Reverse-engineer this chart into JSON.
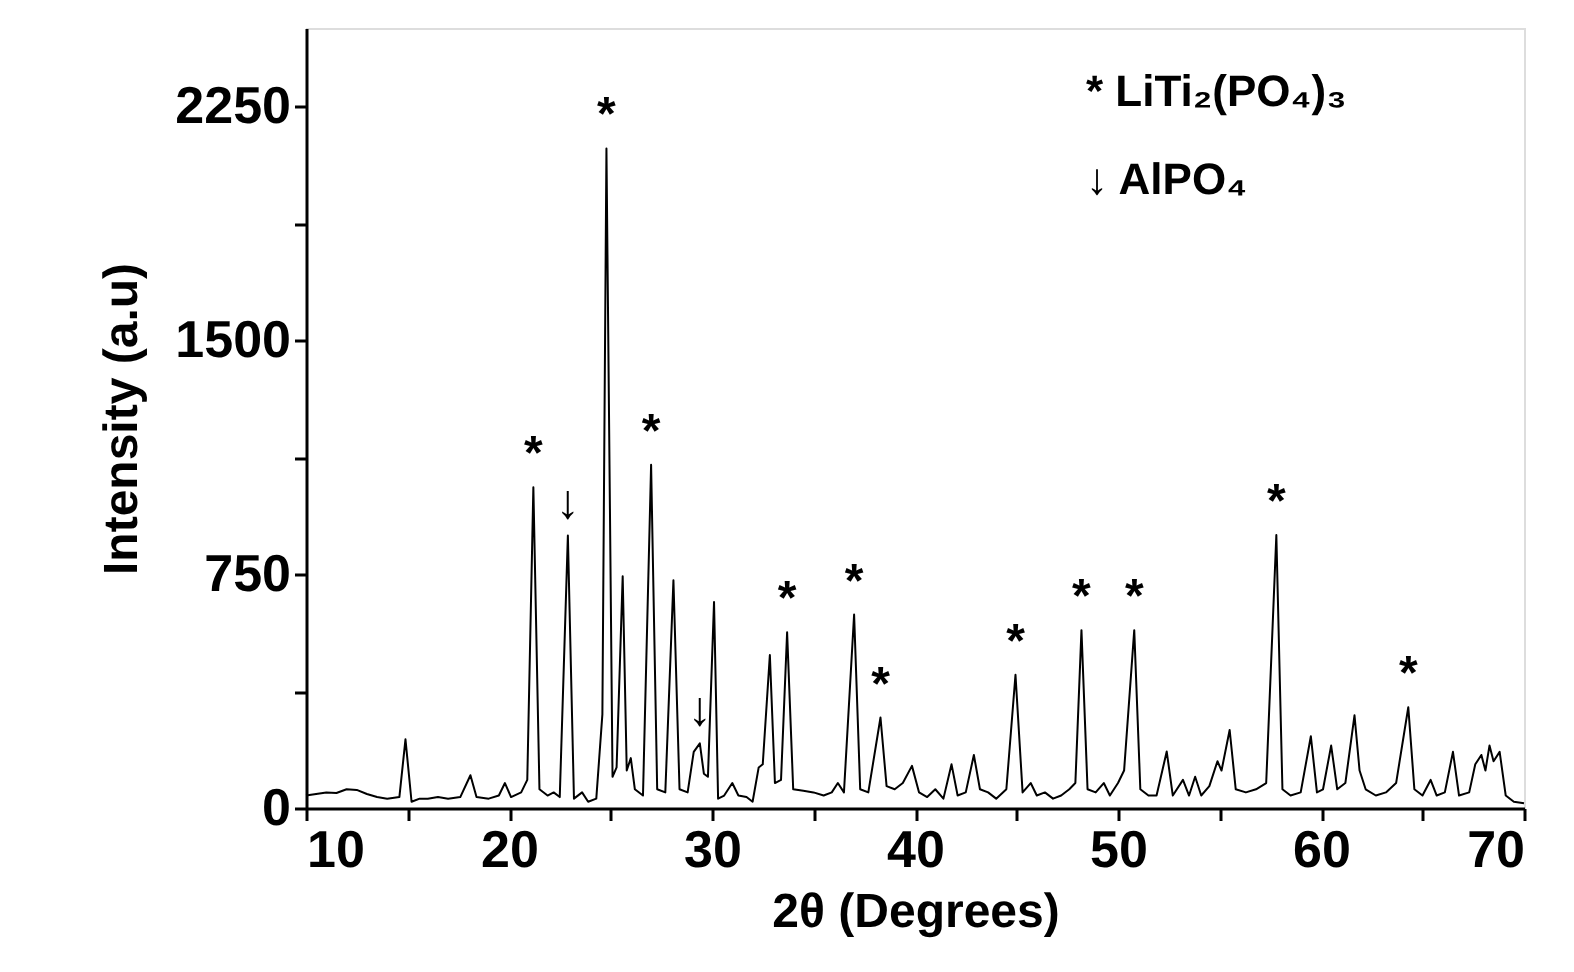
{
  "chart_data": {
    "type": "line",
    "xlabel": "2θ (Degrees)",
    "ylabel": "Intensity (a.u)",
    "xlim": [
      10,
      70
    ],
    "ylim": [
      0,
      2500
    ],
    "xticks": [
      10,
      {
        "value": 15,
        "label": null
      },
      20,
      {
        "value": 25,
        "label": null
      },
      30,
      {
        "value": 35,
        "label": null
      },
      40,
      {
        "value": 45,
        "label": null
      },
      50,
      {
        "value": 55,
        "label": null
      },
      60,
      {
        "value": 65,
        "label": null
      },
      70
    ],
    "yticks": [
      0,
      {
        "value": 375,
        "label": null
      },
      750,
      {
        "value": 1125,
        "label": null
      },
      1500,
      {
        "value": 1875,
        "label": null
      },
      2250
    ],
    "series": [
      {
        "color": "#000000",
        "x": [
          10,
          10.5,
          11,
          11.5,
          12,
          12.5,
          13,
          13.5,
          14,
          14.6,
          14.9,
          15.2,
          15.6,
          16,
          16.5,
          17,
          17.6,
          18.1,
          18.4,
          19,
          19.5,
          19.8,
          20.1,
          20.6,
          20.9,
          21.2,
          21.5,
          21.9,
          22.2,
          22.5,
          22.9,
          23.2,
          23.6,
          23.9,
          24.3,
          24.6,
          24.8,
          25.1,
          25.3,
          25.6,
          25.8,
          26.0,
          26.2,
          26.6,
          27.0,
          27.3,
          27.7,
          28.1,
          28.4,
          28.8,
          29.1,
          29.4,
          29.6,
          29.8,
          30.1,
          30.3,
          30.6,
          31.0,
          31.3,
          31.7,
          32.0,
          32.3,
          32.5,
          32.85,
          33.1,
          33.4,
          33.7,
          34.0,
          34.5,
          35.0,
          35.5,
          35.9,
          36.2,
          36.5,
          37.0,
          37.3,
          37.7,
          38.3,
          38.6,
          39.0,
          39.4,
          39.85,
          40.2,
          40.6,
          41.0,
          41.4,
          41.8,
          42.1,
          42.5,
          42.9,
          43.2,
          43.6,
          44.0,
          44.5,
          44.95,
          45.3,
          45.7,
          46.0,
          46.4,
          46.8,
          47.2,
          47.6,
          47.9,
          48.2,
          48.5,
          48.9,
          49.3,
          49.6,
          50.0,
          50.3,
          50.8,
          51.1,
          51.5,
          51.9,
          52.4,
          52.7,
          53.2,
          53.5,
          53.8,
          54.1,
          54.5,
          54.9,
          55.1,
          55.5,
          55.8,
          56.3,
          56.8,
          57.3,
          57.8,
          58.1,
          58.5,
          59.0,
          59.5,
          59.8,
          60.1,
          60.5,
          60.8,
          61.2,
          61.65,
          61.9,
          62.2,
          62.7,
          63.2,
          63.7,
          64.3,
          64.6,
          65.0,
          65.4,
          65.7,
          66.1,
          66.5,
          66.8,
          67.3,
          67.6,
          67.9,
          68.1,
          68.3,
          68.5,
          68.8,
          69.1,
          69.5,
          70
        ],
        "values": [
          40,
          45,
          50,
          48,
          60,
          58,
          45,
          35,
          30,
          35,
          220,
          20,
          30,
          30,
          35,
          30,
          35,
          105,
          35,
          30,
          40,
          80,
          35,
          50,
          90,
          1028,
          60,
          40,
          50,
          35,
          873,
          30,
          50,
          20,
          30,
          300,
          2114,
          100,
          130,
          743,
          120,
          160,
          60,
          40,
          1100,
          60,
          50,
          730,
          60,
          50,
          180,
          207,
          110,
          100,
          660,
          30,
          40,
          80,
          40,
          35,
          20,
          130,
          140,
          490,
          80,
          90,
          563,
          60,
          55,
          50,
          40,
          50,
          80,
          50,
          620,
          60,
          50,
          290,
          70,
          60,
          80,
          135,
          50,
          35,
          60,
          30,
          140,
          40,
          50,
          170,
          60,
          50,
          30,
          60,
          427,
          50,
          80,
          40,
          50,
          30,
          40,
          60,
          80,
          570,
          60,
          50,
          80,
          40,
          80,
          120,
          570,
          60,
          40,
          40,
          181,
          40,
          90,
          40,
          100,
          40,
          70,
          150,
          120,
          250,
          60,
          50,
          60,
          80,
          875,
          60,
          40,
          50,
          230,
          50,
          60,
          200,
          60,
          80,
          297,
          120,
          60,
          40,
          50,
          80,
          323,
          60,
          40,
          90,
          40,
          50,
          180,
          40,
          50,
          140,
          170,
          120,
          200,
          150,
          180,
          40,
          20,
          15
        ]
      }
    ],
    "annotations": [
      {
        "text": "*",
        "x": 21.2,
        "y": 1028
      },
      {
        "text": "*",
        "x": 24.8,
        "y": 2114
      },
      {
        "text": "*",
        "x": 27.0,
        "y": 1100
      },
      {
        "text": "*",
        "x": 33.7,
        "y": 563
      },
      {
        "text": "*",
        "x": 37.0,
        "y": 620
      },
      {
        "text": "*",
        "x": 38.3,
        "y": 290
      },
      {
        "text": "*",
        "x": 44.95,
        "y": 427
      },
      {
        "text": "*",
        "x": 48.2,
        "y": 570
      },
      {
        "text": "*",
        "x": 50.8,
        "y": 570
      },
      {
        "text": "*",
        "x": 57.8,
        "y": 875
      },
      {
        "text": "*",
        "x": 64.3,
        "y": 323
      },
      {
        "text": "↓",
        "x": 22.9,
        "y": 873
      },
      {
        "text": "↓",
        "x": 29.4,
        "y": 207
      },
      "*   LiTi₂(PO₄)₃",
      "↓   AlPO₄"
    ]
  }
}
